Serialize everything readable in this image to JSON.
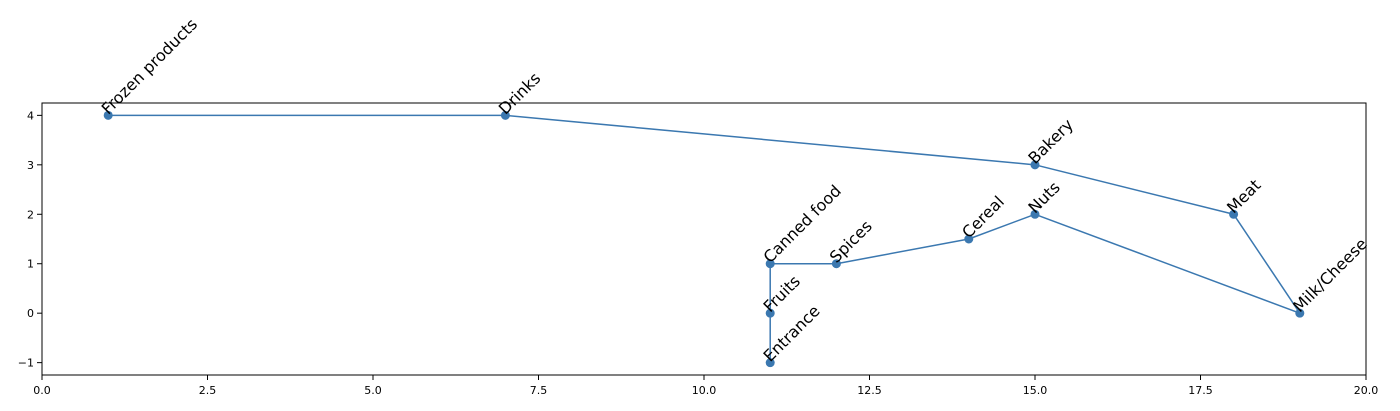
{
  "chart_data": {
    "type": "line",
    "title": "",
    "xlabel": "",
    "ylabel": "",
    "xlim": [
      0.0,
      20.0
    ],
    "ylim": [
      -1.25,
      4.25
    ],
    "xticks": [
      0.0,
      2.5,
      5.0,
      7.5,
      10.0,
      12.5,
      15.0,
      17.5,
      20.0
    ],
    "xtick_labels": [
      "0.0",
      "2.5",
      "5.0",
      "7.5",
      "10.0",
      "12.5",
      "15.0",
      "17.5",
      "20.0"
    ],
    "yticks": [
      -1,
      0,
      1,
      2,
      3,
      4
    ],
    "ytick_labels": [
      "−1",
      "0",
      "1",
      "2",
      "3",
      "4"
    ],
    "grid": false,
    "series_color": "#3b78b0",
    "points": [
      {
        "label": "Entrance",
        "x": 11,
        "y": -1
      },
      {
        "label": "Fruits",
        "x": 11,
        "y": 0
      },
      {
        "label": "Canned food",
        "x": 11,
        "y": 1
      },
      {
        "label": "Spices",
        "x": 12,
        "y": 1
      },
      {
        "label": "Cereal",
        "x": 14,
        "y": 1.5
      },
      {
        "label": "Nuts",
        "x": 15,
        "y": 2
      },
      {
        "label": "Milk/Cheese",
        "x": 19,
        "y": 0
      },
      {
        "label": "Meat",
        "x": 18,
        "y": 2
      },
      {
        "label": "Bakery",
        "x": 15,
        "y": 3
      },
      {
        "label": "Drinks",
        "x": 7,
        "y": 4
      },
      {
        "label": "Frozen products",
        "x": 1,
        "y": 4
      }
    ]
  }
}
